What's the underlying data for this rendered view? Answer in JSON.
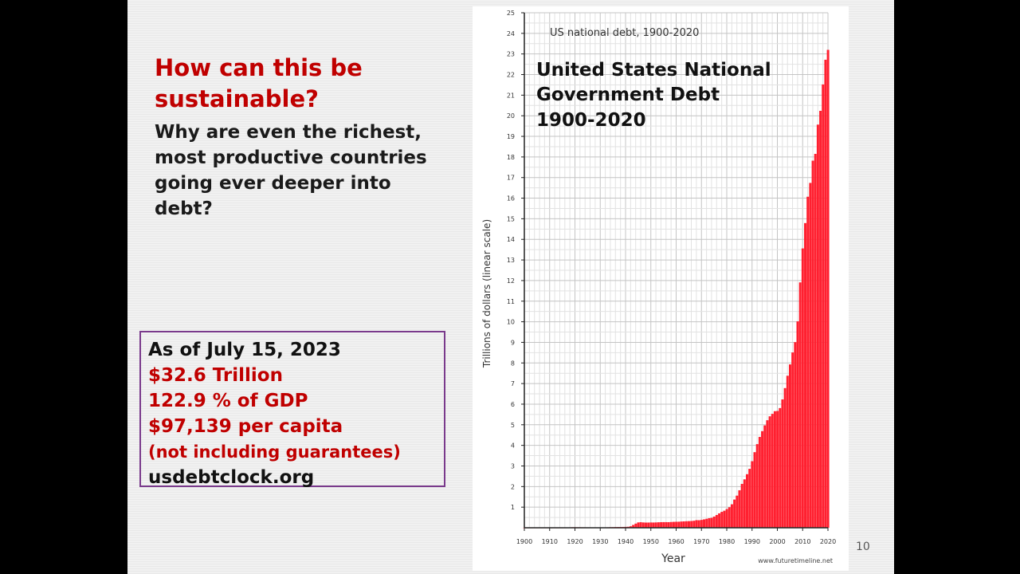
{
  "slide": {
    "headline": "How can this be sustainable?",
    "question": "Why are even the richest, most productive countries going ever deeper into debt?",
    "info_box": {
      "date_line": "As of July 15, 2023",
      "debt_line": "$32.6 Trillion",
      "gdp_line": "122.9 % of GDP",
      "per_capita_line": "$97,139 per capita",
      "note_line": "(not including guarantees)",
      "source_line": "usdebtclock.org"
    },
    "page_number": "10"
  },
  "chart_data": {
    "type": "bar",
    "subtitle": "US national debt, 1900-2020",
    "title_lines": [
      "United States National",
      "Government Debt",
      "1900-2020"
    ],
    "xlabel": "Year",
    "ylabel": "Trillions of dollars (linear scale)",
    "source": "www.futuretimeline.net",
    "xlim": [
      1900,
      2020
    ],
    "ylim": [
      0,
      25
    ],
    "y_ticks": [
      1,
      2,
      3,
      4,
      5,
      6,
      7,
      8,
      9,
      10,
      11,
      12,
      13,
      14,
      15,
      16,
      17,
      18,
      19,
      20,
      21,
      22,
      23,
      24,
      25
    ],
    "x_ticks": [
      1900,
      1910,
      1920,
      1930,
      1940,
      1950,
      1960,
      1970,
      1980,
      1990,
      2000,
      2010,
      2020
    ],
    "grid": true,
    "bar_color": "#ff2030",
    "years": [
      1900,
      1901,
      1902,
      1903,
      1904,
      1905,
      1906,
      1907,
      1908,
      1909,
      1910,
      1911,
      1912,
      1913,
      1914,
      1915,
      1916,
      1917,
      1918,
      1919,
      1920,
      1921,
      1922,
      1923,
      1924,
      1925,
      1926,
      1927,
      1928,
      1929,
      1930,
      1931,
      1932,
      1933,
      1934,
      1935,
      1936,
      1937,
      1938,
      1939,
      1940,
      1941,
      1942,
      1943,
      1944,
      1945,
      1946,
      1947,
      1948,
      1949,
      1950,
      1951,
      1952,
      1953,
      1954,
      1955,
      1956,
      1957,
      1958,
      1959,
      1960,
      1961,
      1962,
      1963,
      1964,
      1965,
      1966,
      1967,
      1968,
      1969,
      1970,
      1971,
      1972,
      1973,
      1974,
      1975,
      1976,
      1977,
      1978,
      1979,
      1980,
      1981,
      1982,
      1983,
      1984,
      1985,
      1986,
      1987,
      1988,
      1989,
      1990,
      1991,
      1992,
      1993,
      1994,
      1995,
      1996,
      1997,
      1998,
      1999,
      2000,
      2001,
      2002,
      2003,
      2004,
      2005,
      2006,
      2007,
      2008,
      2009,
      2010,
      2011,
      2012,
      2013,
      2014,
      2015,
      2016,
      2017,
      2018,
      2019,
      2020
    ],
    "values": [
      0.002,
      0.002,
      0.002,
      0.002,
      0.002,
      0.002,
      0.002,
      0.002,
      0.002,
      0.002,
      0.002,
      0.002,
      0.002,
      0.002,
      0.002,
      0.002,
      0.003,
      0.007,
      0.012,
      0.025,
      0.026,
      0.024,
      0.023,
      0.022,
      0.021,
      0.02,
      0.019,
      0.018,
      0.018,
      0.017,
      0.016,
      0.017,
      0.019,
      0.022,
      0.027,
      0.029,
      0.034,
      0.036,
      0.037,
      0.04,
      0.043,
      0.049,
      0.072,
      0.137,
      0.201,
      0.259,
      0.269,
      0.258,
      0.252,
      0.253,
      0.257,
      0.255,
      0.259,
      0.266,
      0.271,
      0.274,
      0.273,
      0.272,
      0.28,
      0.287,
      0.291,
      0.293,
      0.303,
      0.31,
      0.317,
      0.322,
      0.328,
      0.34,
      0.369,
      0.366,
      0.381,
      0.408,
      0.436,
      0.466,
      0.484,
      0.543,
      0.62,
      0.699,
      0.772,
      0.827,
      0.908,
      0.998,
      1.14,
      1.37,
      1.56,
      1.82,
      2.13,
      2.35,
      2.6,
      2.86,
      3.23,
      3.67,
      4.06,
      4.41,
      4.69,
      4.97,
      5.22,
      5.41,
      5.53,
      5.66,
      5.67,
      5.81,
      6.23,
      6.78,
      7.38,
      7.93,
      8.51,
      9.01,
      10.02,
      11.91,
      13.56,
      14.79,
      16.07,
      16.74,
      17.82,
      18.15,
      19.57,
      20.24,
      21.52,
      22.72,
      23.2
    ]
  }
}
